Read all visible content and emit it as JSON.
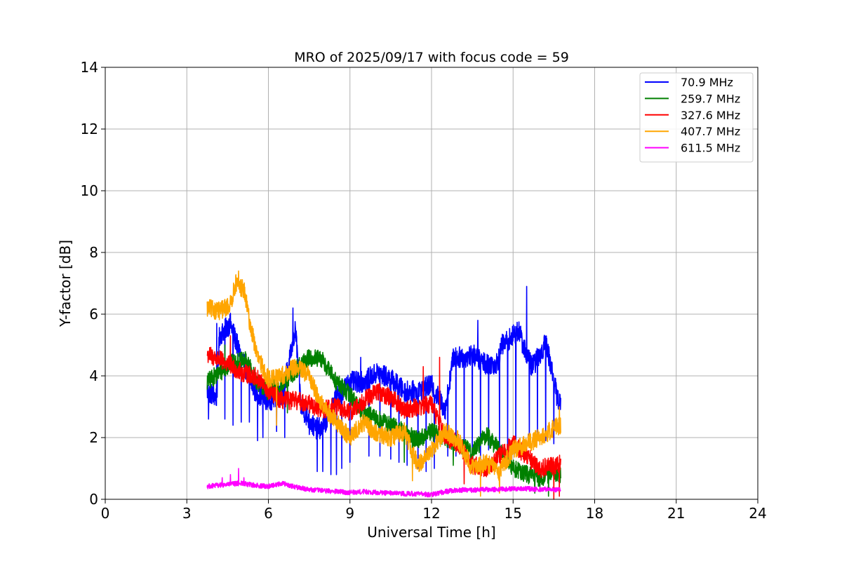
{
  "chart_data": {
    "type": "line",
    "title": "MRO of 2025/09/17 with focus code = 59",
    "xlabel": "Universal Time [h]",
    "ylabel": "Y-factor [dB]",
    "xlim": [
      0,
      24
    ],
    "ylim": [
      0,
      14
    ],
    "xticks": [
      0,
      3,
      6,
      9,
      12,
      15,
      18,
      21,
      24
    ],
    "yticks": [
      0,
      2,
      4,
      6,
      8,
      10,
      12,
      14
    ],
    "grid": true,
    "legend_position": "top-right",
    "series": [
      {
        "name": " 70.9 MHz",
        "color": "#0000ff",
        "noise": 0.35,
        "spikes": [
          [
            3.8,
            2.6
          ],
          [
            4.1,
            5.7
          ],
          [
            4.4,
            2.6
          ],
          [
            4.7,
            2.4
          ],
          [
            5.0,
            2.5
          ],
          [
            5.3,
            2.5
          ],
          [
            5.6,
            1.9
          ],
          [
            5.8,
            2.0
          ],
          [
            6.3,
            2.2
          ],
          [
            6.6,
            2.0
          ],
          [
            6.9,
            6.2
          ],
          [
            7.5,
            2.1
          ],
          [
            7.8,
            0.9
          ],
          [
            8.0,
            0.9
          ],
          [
            8.3,
            0.8
          ],
          [
            8.5,
            0.8
          ],
          [
            8.7,
            1.0
          ],
          [
            9.0,
            1.2
          ],
          [
            9.4,
            4.6
          ],
          [
            9.7,
            1.4
          ],
          [
            10.1,
            1.4
          ],
          [
            10.5,
            1.3
          ],
          [
            10.8,
            1.2
          ],
          [
            11.1,
            1.1
          ],
          [
            11.5,
            1.0
          ],
          [
            11.8,
            0.9
          ],
          [
            12.1,
            1.0
          ],
          [
            12.6,
            1.4
          ],
          [
            12.9,
            1.4
          ],
          [
            13.2,
            1.5
          ],
          [
            13.5,
            1.2
          ],
          [
            13.7,
            5.8
          ],
          [
            13.8,
            1.3
          ],
          [
            14.1,
            1.6
          ],
          [
            14.5,
            1.4
          ],
          [
            14.8,
            1.6
          ],
          [
            15.1,
            1.5
          ],
          [
            15.5,
            6.9
          ],
          [
            15.6,
            1.7
          ],
          [
            15.9,
            1.9
          ],
          [
            16.2,
            1.9
          ],
          [
            16.5,
            1.8
          ],
          [
            16.7,
            2.9
          ]
        ],
        "points": [
          [
            3.75,
            3.5
          ],
          [
            4.1,
            3.3
          ],
          [
            4.2,
            5.3
          ],
          [
            4.6,
            5.7
          ],
          [
            5.0,
            4.6
          ],
          [
            5.5,
            3.5
          ],
          [
            6.0,
            3.2
          ],
          [
            6.5,
            3.4
          ],
          [
            6.8,
            4.6
          ],
          [
            7.0,
            5.5
          ],
          [
            7.2,
            3.0
          ],
          [
            7.7,
            2.3
          ],
          [
            8.0,
            2.3
          ],
          [
            8.5,
            3.3
          ],
          [
            9.0,
            3.8
          ],
          [
            9.5,
            3.8
          ],
          [
            10.0,
            4.1
          ],
          [
            10.5,
            3.9
          ],
          [
            11.0,
            3.5
          ],
          [
            11.5,
            3.5
          ],
          [
            12.0,
            3.7
          ],
          [
            12.5,
            2.9
          ],
          [
            12.8,
            4.6
          ],
          [
            13.2,
            4.6
          ],
          [
            13.5,
            4.7
          ],
          [
            14.0,
            4.4
          ],
          [
            14.4,
            4.4
          ],
          [
            14.6,
            5.0
          ],
          [
            15.0,
            5.3
          ],
          [
            15.2,
            5.5
          ],
          [
            15.4,
            4.9
          ],
          [
            15.7,
            4.3
          ],
          [
            16.0,
            4.7
          ],
          [
            16.2,
            5.1
          ],
          [
            16.4,
            4.3
          ],
          [
            16.6,
            3.4
          ],
          [
            16.75,
            3.0
          ]
        ]
      },
      {
        "name": "259.7 MHz",
        "color": "#008000",
        "noise": 0.3,
        "spikes": [
          [
            4.4,
            5.0
          ],
          [
            6.7,
            2.8
          ],
          [
            11.0,
            1.2
          ],
          [
            11.3,
            1.0
          ],
          [
            12.8,
            1.1
          ],
          [
            15.8,
            0.2
          ],
          [
            16.3,
            0.1
          ]
        ],
        "points": [
          [
            3.75,
            3.8
          ],
          [
            4.2,
            4.1
          ],
          [
            4.6,
            4.4
          ],
          [
            5.2,
            4.5
          ],
          [
            5.5,
            3.9
          ],
          [
            6.0,
            3.5
          ],
          [
            6.5,
            3.7
          ],
          [
            7.0,
            4.2
          ],
          [
            7.5,
            4.6
          ],
          [
            8.0,
            4.5
          ],
          [
            8.5,
            3.8
          ],
          [
            9.0,
            3.4
          ],
          [
            9.5,
            2.8
          ],
          [
            10.0,
            2.6
          ],
          [
            10.5,
            2.4
          ],
          [
            11.0,
            2.2
          ],
          [
            11.5,
            1.9
          ],
          [
            12.0,
            2.2
          ],
          [
            12.5,
            2.0
          ],
          [
            13.0,
            1.8
          ],
          [
            13.5,
            1.5
          ],
          [
            14.0,
            2.1
          ],
          [
            14.5,
            1.6
          ],
          [
            15.0,
            1.0
          ],
          [
            15.5,
            0.8
          ],
          [
            16.0,
            0.7
          ],
          [
            16.5,
            0.9
          ],
          [
            16.75,
            0.8
          ]
        ]
      },
      {
        "name": "327.6 MHz",
        "color": "#ff0000",
        "noise": 0.3,
        "spikes": [
          [
            4.6,
            5.3
          ],
          [
            11.7,
            4.3
          ],
          [
            12.3,
            4.6
          ],
          [
            13.2,
            0.5
          ],
          [
            16.5,
            0.0
          ],
          [
            16.7,
            0.1
          ]
        ],
        "points": [
          [
            3.75,
            4.7
          ],
          [
            4.5,
            4.4
          ],
          [
            5.0,
            4.1
          ],
          [
            5.5,
            4.0
          ],
          [
            6.0,
            3.5
          ],
          [
            6.5,
            3.2
          ],
          [
            7.0,
            3.2
          ],
          [
            7.5,
            3.1
          ],
          [
            8.0,
            2.9
          ],
          [
            8.5,
            3.0
          ],
          [
            9.0,
            2.8
          ],
          [
            9.5,
            3.2
          ],
          [
            10.0,
            3.5
          ],
          [
            10.5,
            3.3
          ],
          [
            11.0,
            2.9
          ],
          [
            11.5,
            3.0
          ],
          [
            12.0,
            3.1
          ],
          [
            12.5,
            2.0
          ],
          [
            13.0,
            1.8
          ],
          [
            13.5,
            1.1
          ],
          [
            14.0,
            1.0
          ],
          [
            14.5,
            1.4
          ],
          [
            15.0,
            1.8
          ],
          [
            15.5,
            1.4
          ],
          [
            16.0,
            1.0
          ],
          [
            16.5,
            1.1
          ],
          [
            16.75,
            1.2
          ]
        ]
      },
      {
        "name": "407.7 MHz",
        "color": "#ffa500",
        "noise": 0.3,
        "spikes": [
          [
            4.9,
            7.4
          ],
          [
            6.3,
            2.4
          ],
          [
            11.3,
            0.6
          ],
          [
            13.8,
            0.1
          ],
          [
            14.5,
            0.2
          ],
          [
            16.7,
            3.0
          ]
        ],
        "points": [
          [
            3.75,
            6.2
          ],
          [
            4.2,
            6.1
          ],
          [
            4.6,
            6.3
          ],
          [
            4.8,
            7.0
          ],
          [
            5.1,
            6.8
          ],
          [
            5.3,
            5.8
          ],
          [
            5.6,
            4.6
          ],
          [
            6.0,
            3.9
          ],
          [
            6.5,
            4.0
          ],
          [
            7.0,
            4.3
          ],
          [
            7.5,
            4.0
          ],
          [
            8.0,
            3.0
          ],
          [
            8.5,
            2.5
          ],
          [
            9.0,
            2.0
          ],
          [
            9.5,
            2.5
          ],
          [
            10.0,
            2.1
          ],
          [
            10.5,
            2.0
          ],
          [
            11.0,
            2.2
          ],
          [
            11.5,
            1.1
          ],
          [
            12.0,
            1.6
          ],
          [
            12.5,
            2.2
          ],
          [
            13.0,
            1.9
          ],
          [
            13.5,
            1.0
          ],
          [
            14.0,
            1.2
          ],
          [
            14.5,
            0.9
          ],
          [
            15.0,
            1.6
          ],
          [
            15.5,
            1.8
          ],
          [
            16.0,
            2.0
          ],
          [
            16.5,
            2.3
          ],
          [
            16.75,
            2.4
          ]
        ]
      },
      {
        "name": "611.5 MHz",
        "color": "#ff00ff",
        "noise": 0.08,
        "spikes": [
          [
            4.3,
            0.7
          ],
          [
            4.6,
            0.8
          ],
          [
            4.9,
            1.0
          ],
          [
            5.1,
            0.7
          ]
        ],
        "points": [
          [
            3.75,
            0.42
          ],
          [
            4.5,
            0.48
          ],
          [
            5.0,
            0.52
          ],
          [
            5.5,
            0.45
          ],
          [
            6.0,
            0.42
          ],
          [
            6.5,
            0.52
          ],
          [
            7.0,
            0.4
          ],
          [
            7.5,
            0.32
          ],
          [
            8.0,
            0.28
          ],
          [
            8.5,
            0.25
          ],
          [
            9.0,
            0.22
          ],
          [
            9.5,
            0.25
          ],
          [
            10.0,
            0.22
          ],
          [
            10.5,
            0.2
          ],
          [
            11.0,
            0.18
          ],
          [
            11.5,
            0.18
          ],
          [
            12.0,
            0.15
          ],
          [
            12.5,
            0.25
          ],
          [
            13.0,
            0.3
          ],
          [
            13.5,
            0.3
          ],
          [
            14.0,
            0.32
          ],
          [
            14.5,
            0.32
          ],
          [
            15.0,
            0.34
          ],
          [
            15.5,
            0.34
          ],
          [
            16.0,
            0.32
          ],
          [
            16.5,
            0.32
          ],
          [
            16.75,
            0.3
          ]
        ]
      }
    ]
  }
}
